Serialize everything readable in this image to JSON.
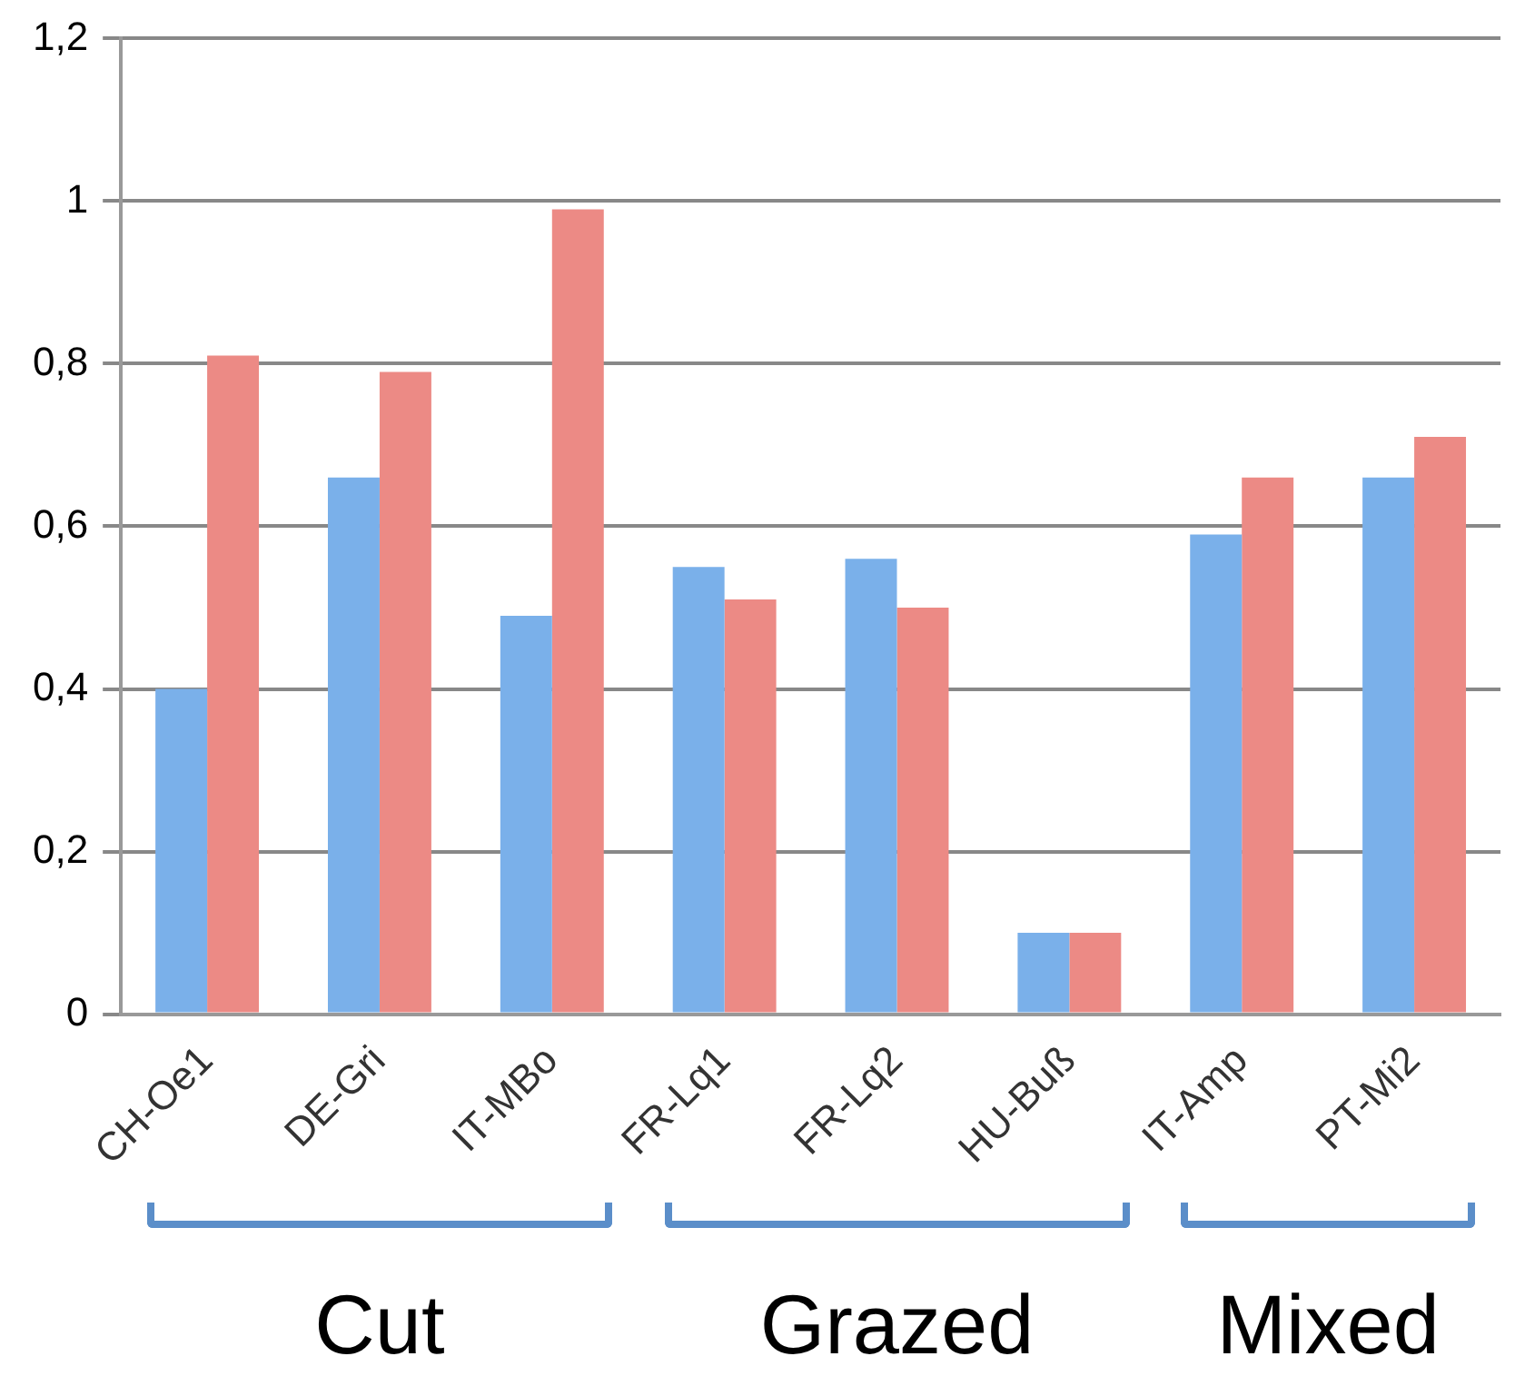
{
  "chart_data": {
    "type": "bar",
    "categories": [
      "CH-Oe1",
      "DE-Gri",
      "IT-MBo",
      "FR-Lq1",
      "FR-Lq2",
      "HU-Buß",
      "IT-Amp",
      "PT-Mi2"
    ],
    "series": [
      {
        "color": "#7ab0ea",
        "values": [
          0.4,
          0.66,
          0.49,
          0.55,
          0.56,
          0.1,
          0.59,
          0.66
        ]
      },
      {
        "color": "#ec8a85",
        "values": [
          0.81,
          0.79,
          0.99,
          0.51,
          0.5,
          0.1,
          0.66,
          0.71
        ]
      }
    ],
    "ylim": [
      0,
      1.2
    ],
    "yticks": [
      0,
      {
        "value": 0.2,
        "label": "0,2"
      },
      {
        "value": 0.4,
        "label": "0,4"
      },
      {
        "value": 0.6,
        "label": "0,6"
      },
      {
        "value": 0.8,
        "label": "0,8"
      },
      1,
      {
        "value": 1.2,
        "label": "1,2"
      }
    ],
    "grid": "y",
    "legend": false,
    "annotations": [
      "Cut",
      "Grazed",
      "Mixed"
    ]
  }
}
